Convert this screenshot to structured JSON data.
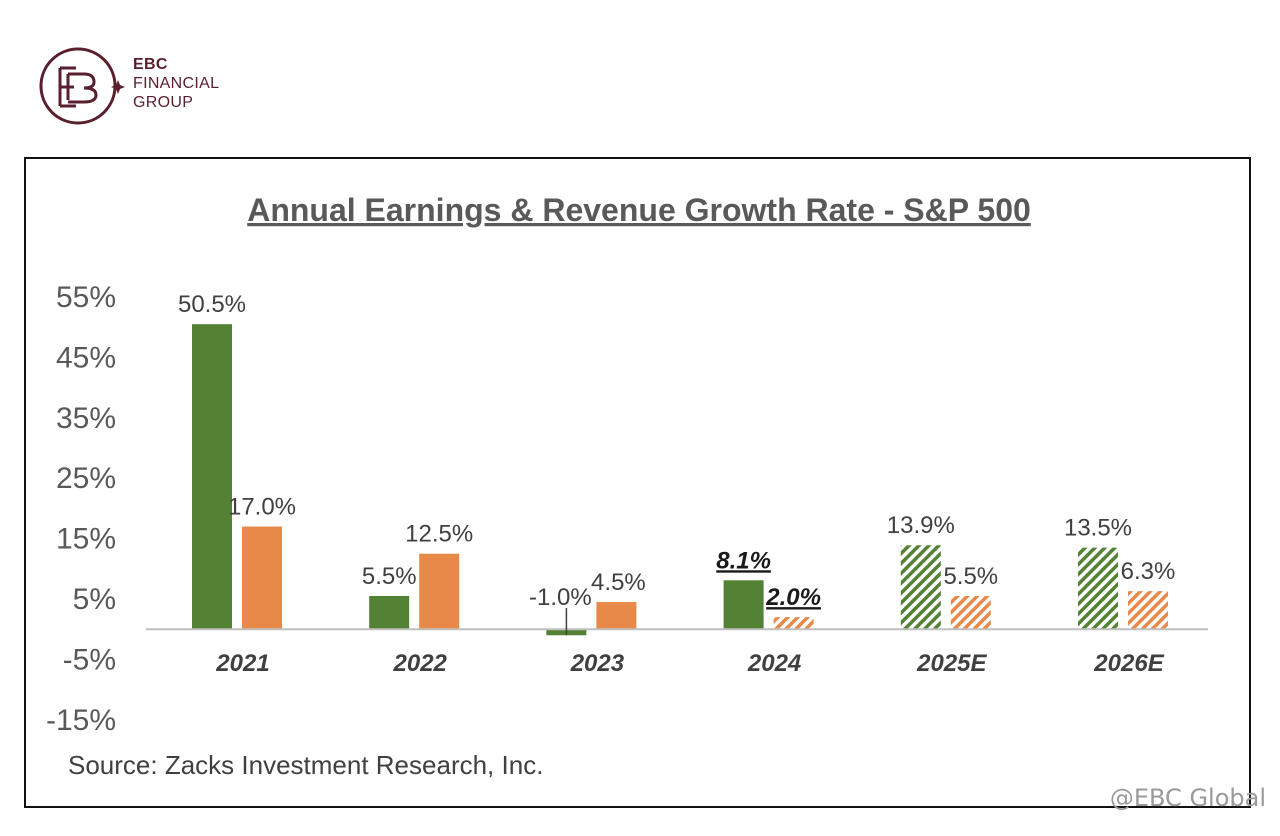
{
  "brand": {
    "line1": "EBC",
    "line2": "FINANCIAL",
    "line3": "GROUP",
    "color": "#5a1f2c"
  },
  "watermark": "@EBC Global",
  "colors": {
    "earnings": "#548235",
    "revenue": "#e8894a",
    "axis": "#bfbfbf",
    "text": "#404040"
  },
  "chart_data": {
    "type": "bar",
    "title": "Annual Earnings & Revenue Growth Rate - S&P 500",
    "source": "Source: Zacks Investment Research, Inc.",
    "categories": [
      "2021",
      "2022",
      "2023",
      "2024",
      "2025E",
      "2026E"
    ],
    "ylim": [
      -15,
      55
    ],
    "yticks": [
      55,
      45,
      35,
      25,
      15,
      5,
      -5,
      -15
    ],
    "ytick_labels": [
      "55%",
      "45%",
      "35%",
      "25%",
      "15%",
      "5%",
      "-5%",
      "-15%"
    ],
    "series": [
      {
        "name": "Earnings",
        "values": [
          50.5,
          5.5,
          -1.0,
          8.1,
          13.9,
          13.5
        ],
        "labels": [
          "50.5%",
          "5.5%",
          "-1.0%",
          "8.1%",
          "13.9%",
          "13.5%"
        ],
        "estimated": [
          false,
          false,
          false,
          false,
          true,
          true
        ]
      },
      {
        "name": "Revenue",
        "values": [
          17.0,
          12.5,
          4.5,
          2.0,
          5.5,
          6.3
        ],
        "labels": [
          "17.0%",
          "12.5%",
          "4.5%",
          "2.0%",
          "5.5%",
          "6.3%"
        ],
        "estimated": [
          false,
          false,
          false,
          true,
          true,
          true
        ]
      }
    ],
    "emphasized_labels": [
      "8.1%",
      "2.0%"
    ]
  }
}
